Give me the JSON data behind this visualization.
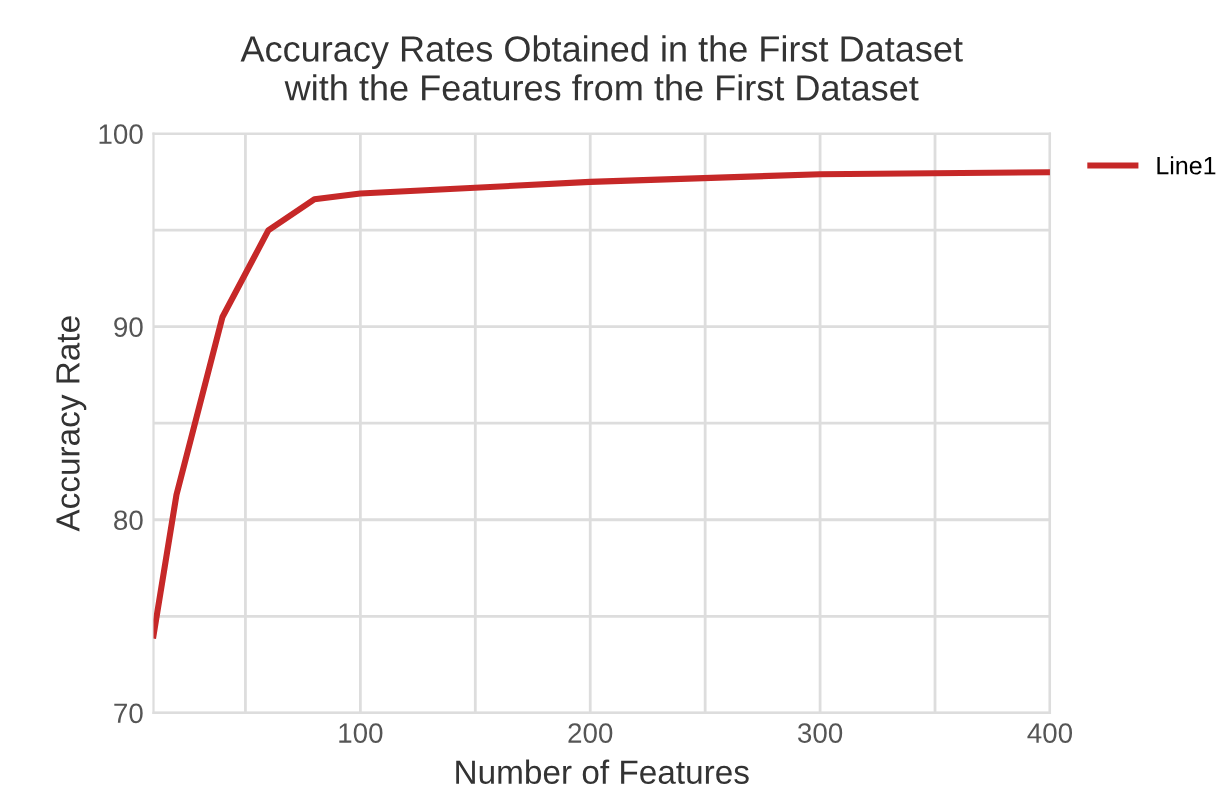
{
  "chart_data": {
    "type": "line",
    "title": "Accuracy Rates Obtained in the First Dataset\nwith the Features from the First Dataset",
    "xlabel": "Number of Features",
    "ylabel": "Accuracy Rate",
    "x": [
      10,
      20,
      40,
      60,
      80,
      100,
      200,
      300,
      400
    ],
    "series": [
      {
        "name": "Line1",
        "color": "#c62828",
        "values": [
          74.0,
          81.3,
          90.5,
          95.0,
          96.6,
          96.9,
          97.5,
          97.9,
          98.0
        ]
      }
    ],
    "xlim": [
      10,
      400
    ],
    "xticks": [
      {
        "value": 50,
        "label": null
      },
      100,
      {
        "value": 150,
        "label": null
      },
      200,
      {
        "value": 250,
        "label": null
      },
      300,
      {
        "value": 350,
        "label": null
      },
      400
    ],
    "ylim": [
      70,
      100
    ],
    "yticks": [
      70,
      {
        "value": 75,
        "label": null
      },
      80,
      {
        "value": 85,
        "label": null
      },
      90,
      {
        "value": 95,
        "label": null
      },
      100
    ],
    "grid": true,
    "legend": "right",
    "marker": "none",
    "line_style": "solid"
  }
}
